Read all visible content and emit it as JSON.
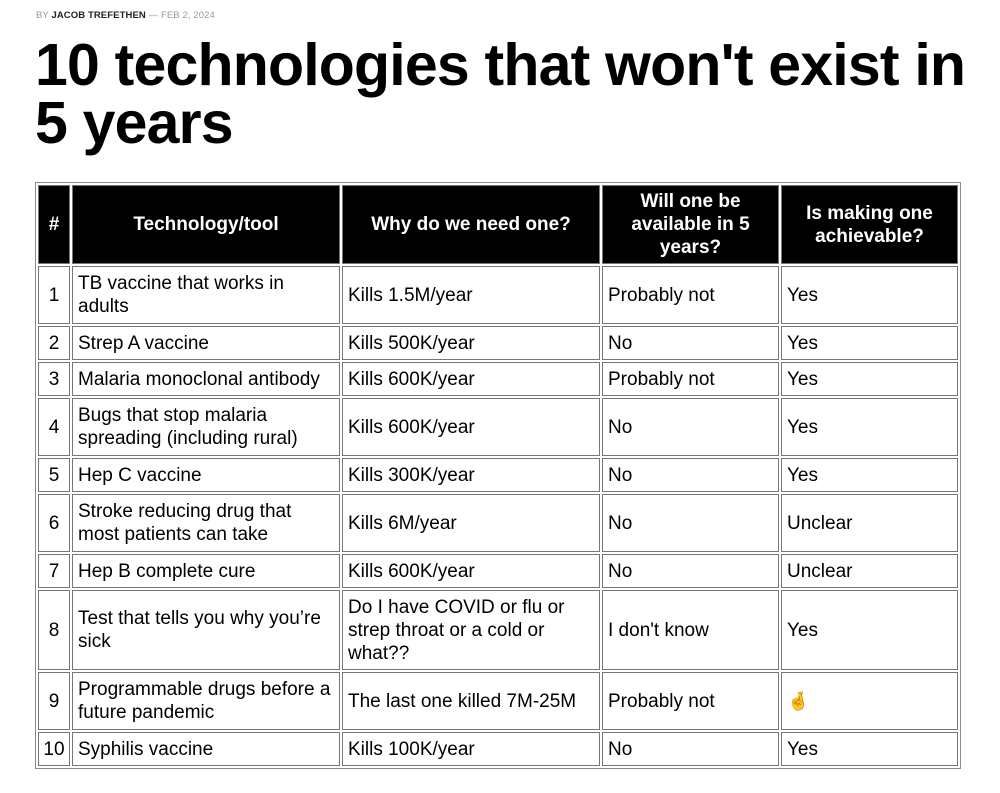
{
  "byline": {
    "prefix": "BY",
    "author": "JACOB TREFETHEN",
    "date": "— FEB 2, 2024"
  },
  "title": "10 technologies that won't exist in 5 years",
  "table": {
    "headers": [
      "#",
      "Technology/tool",
      "Why do we need one?",
      "Will one be available in 5 years?",
      "Is making one achievable?"
    ],
    "rows": [
      [
        "1",
        "TB vaccine that works in adults",
        "Kills 1.5M/year",
        "Probably not",
        "Yes"
      ],
      [
        "2",
        "Strep A vaccine",
        "Kills 500K/year",
        "No",
        "Yes"
      ],
      [
        "3",
        "Malaria monoclonal antibody",
        "Kills 600K/year",
        "Probably not",
        "Yes"
      ],
      [
        "4",
        "Bugs that stop malaria spreading (including rural)",
        "Kills 600K/year",
        "No",
        "Yes"
      ],
      [
        "5",
        "Hep C vaccine",
        "Kills 300K/year",
        "No",
        "Yes"
      ],
      [
        "6",
        "Stroke reducing drug that most patients can take",
        "Kills 6M/year",
        "No",
        "Unclear"
      ],
      [
        "7",
        "Hep B complete cure",
        "Kills 600K/year",
        "No",
        "Unclear"
      ],
      [
        "8",
        "Test that tells you why you’re sick",
        "Do I have COVID or flu or strep throat or a cold or what??",
        "I don't know",
        "Yes"
      ],
      [
        "9",
        "Programmable drugs before a future pandemic",
        "The last one killed 7M-25M",
        "Probably not",
        "🤞"
      ],
      [
        "10",
        "Syphilis vaccine",
        "Kills 100K/year",
        "No",
        "Yes"
      ]
    ]
  }
}
